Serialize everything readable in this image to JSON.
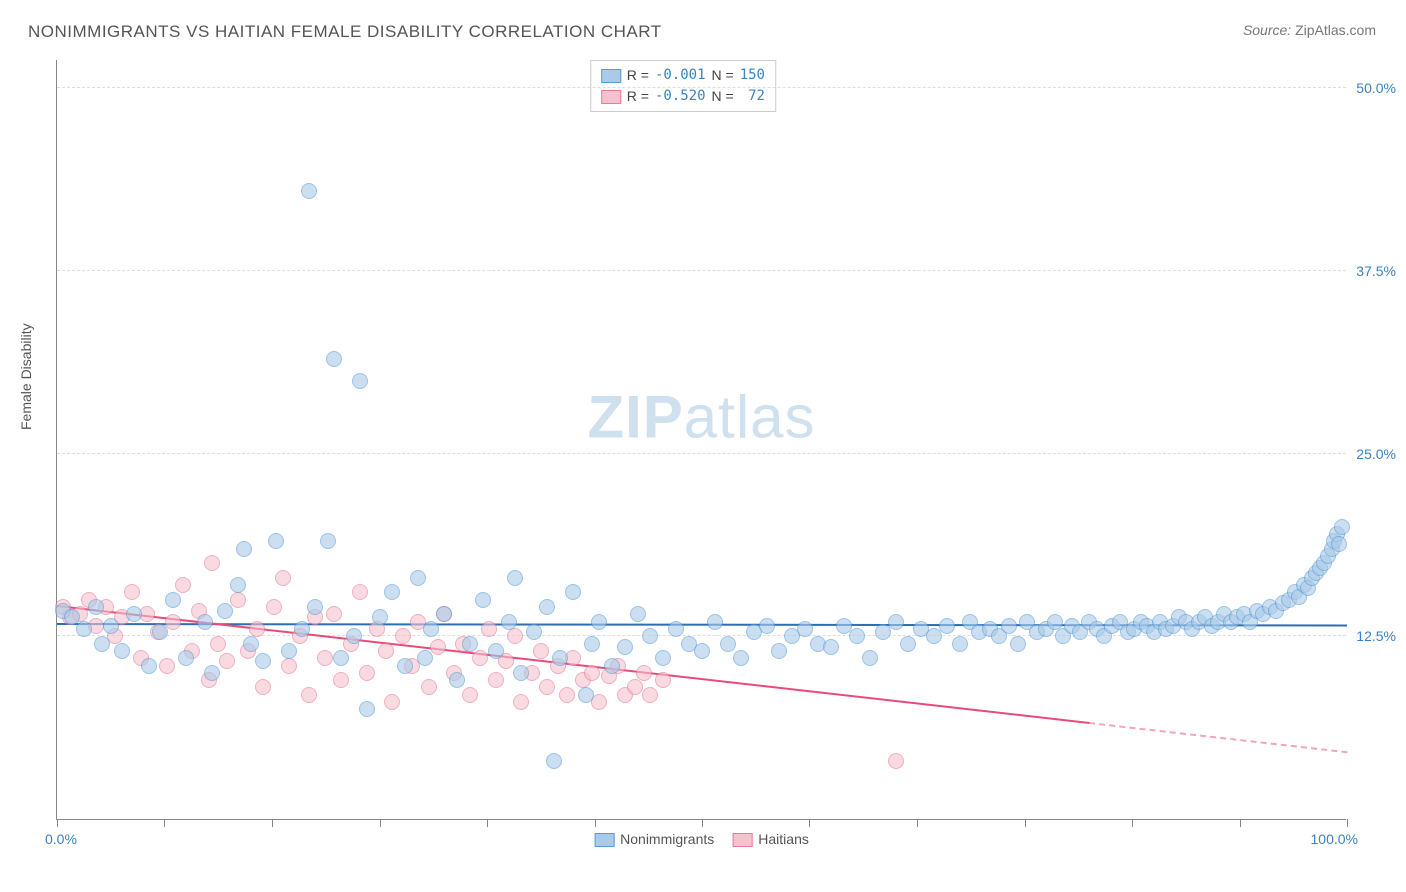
{
  "title": "NONIMMIGRANTS VS HAITIAN FEMALE DISABILITY CORRELATION CHART",
  "source_label": "Source:",
  "source_name": "ZipAtlas.com",
  "yaxis_title": "Female Disability",
  "watermark_bold": "ZIP",
  "watermark_rest": "atlas",
  "chart": {
    "type": "scatter",
    "background_color": "#ffffff",
    "grid_color": "#dddddd",
    "axis_color": "#888888",
    "xlim": [
      0,
      100
    ],
    "ylim": [
      0,
      52
    ],
    "xaxis": {
      "label_left": "0.0%",
      "label_right": "100.0%",
      "tick_positions": [
        0,
        8.3,
        16.7,
        25,
        33.3,
        41.7,
        50,
        58.3,
        66.7,
        75,
        83.3,
        91.7,
        100
      ]
    },
    "yaxis": {
      "ticks": [
        {
          "value": 12.5,
          "label": "12.5%"
        },
        {
          "value": 25.0,
          "label": "25.0%"
        },
        {
          "value": 37.5,
          "label": "37.5%"
        },
        {
          "value": 50.0,
          "label": "50.0%"
        }
      ]
    },
    "marker_radius": 8,
    "marker_border_width": 1,
    "series": [
      {
        "name": "Nonimmigrants",
        "fill_color": "#a9cbe8",
        "border_color": "#5b9bd5",
        "fill_opacity": 0.6,
        "R": "-0.001",
        "N": "150",
        "trend": {
          "y_at_x0": 13.3,
          "y_at_x100": 13.2,
          "color": "#2f6db3",
          "width": 2,
          "dash_from_x": 100
        },
        "points": [
          [
            0.5,
            14.2
          ],
          [
            1.2,
            13.8
          ],
          [
            2.1,
            13.0
          ],
          [
            3.0,
            14.5
          ],
          [
            3.5,
            12.0
          ],
          [
            4.2,
            13.2
          ],
          [
            5.0,
            11.5
          ],
          [
            6.0,
            14.0
          ],
          [
            7.1,
            10.5
          ],
          [
            8.0,
            12.8
          ],
          [
            9.0,
            15.0
          ],
          [
            10.0,
            11.0
          ],
          [
            11.5,
            13.5
          ],
          [
            12.0,
            10.0
          ],
          [
            13.0,
            14.2
          ],
          [
            14.0,
            16.0
          ],
          [
            14.5,
            18.5
          ],
          [
            15.0,
            12.0
          ],
          [
            16.0,
            10.8
          ],
          [
            17.0,
            19.0
          ],
          [
            18.0,
            11.5
          ],
          [
            19.0,
            13.0
          ],
          [
            19.5,
            43.0
          ],
          [
            20.0,
            14.5
          ],
          [
            21.0,
            19.0
          ],
          [
            21.5,
            31.5
          ],
          [
            22.0,
            11.0
          ],
          [
            23.0,
            12.5
          ],
          [
            23.5,
            30.0
          ],
          [
            24.0,
            7.5
          ],
          [
            25.0,
            13.8
          ],
          [
            26.0,
            15.5
          ],
          [
            27.0,
            10.5
          ],
          [
            28.0,
            16.5
          ],
          [
            28.5,
            11.0
          ],
          [
            29.0,
            13.0
          ],
          [
            30.0,
            14.0
          ],
          [
            31.0,
            9.5
          ],
          [
            32.0,
            12.0
          ],
          [
            33.0,
            15.0
          ],
          [
            34.0,
            11.5
          ],
          [
            35.0,
            13.5
          ],
          [
            35.5,
            16.5
          ],
          [
            36.0,
            10.0
          ],
          [
            37.0,
            12.8
          ],
          [
            38.0,
            14.5
          ],
          [
            38.5,
            4.0
          ],
          [
            39.0,
            11.0
          ],
          [
            40.0,
            15.5
          ],
          [
            41.0,
            8.5
          ],
          [
            41.5,
            12.0
          ],
          [
            42.0,
            13.5
          ],
          [
            43.0,
            10.5
          ],
          [
            44.0,
            11.8
          ],
          [
            45.0,
            14.0
          ],
          [
            46.0,
            12.5
          ],
          [
            47.0,
            11.0
          ],
          [
            48.0,
            13.0
          ],
          [
            49.0,
            12.0
          ],
          [
            50.0,
            11.5
          ],
          [
            51.0,
            13.5
          ],
          [
            52.0,
            12.0
          ],
          [
            53.0,
            11.0
          ],
          [
            54.0,
            12.8
          ],
          [
            55.0,
            13.2
          ],
          [
            56.0,
            11.5
          ],
          [
            57.0,
            12.5
          ],
          [
            58.0,
            13.0
          ],
          [
            59.0,
            12.0
          ],
          [
            60.0,
            11.8
          ],
          [
            61.0,
            13.2
          ],
          [
            62.0,
            12.5
          ],
          [
            63.0,
            11.0
          ],
          [
            64.0,
            12.8
          ],
          [
            65.0,
            13.5
          ],
          [
            66.0,
            12.0
          ],
          [
            67.0,
            13.0
          ],
          [
            68.0,
            12.5
          ],
          [
            69.0,
            13.2
          ],
          [
            70.0,
            12.0
          ],
          [
            70.8,
            13.5
          ],
          [
            71.5,
            12.8
          ],
          [
            72.3,
            13.0
          ],
          [
            73.0,
            12.5
          ],
          [
            73.8,
            13.2
          ],
          [
            74.5,
            12.0
          ],
          [
            75.2,
            13.5
          ],
          [
            76.0,
            12.8
          ],
          [
            76.7,
            13.0
          ],
          [
            77.4,
            13.5
          ],
          [
            78.0,
            12.5
          ],
          [
            78.7,
            13.2
          ],
          [
            79.3,
            12.8
          ],
          [
            80.0,
            13.5
          ],
          [
            80.6,
            13.0
          ],
          [
            81.2,
            12.5
          ],
          [
            81.8,
            13.2
          ],
          [
            82.4,
            13.5
          ],
          [
            83.0,
            12.8
          ],
          [
            83.5,
            13.0
          ],
          [
            84.0,
            13.5
          ],
          [
            84.5,
            13.2
          ],
          [
            85.0,
            12.8
          ],
          [
            85.5,
            13.5
          ],
          [
            86.0,
            13.0
          ],
          [
            86.5,
            13.2
          ],
          [
            87.0,
            13.8
          ],
          [
            87.5,
            13.5
          ],
          [
            88.0,
            13.0
          ],
          [
            88.5,
            13.5
          ],
          [
            89.0,
            13.8
          ],
          [
            89.5,
            13.2
          ],
          [
            90.0,
            13.5
          ],
          [
            90.5,
            14.0
          ],
          [
            91.0,
            13.5
          ],
          [
            91.5,
            13.8
          ],
          [
            92.0,
            14.0
          ],
          [
            92.5,
            13.5
          ],
          [
            93.0,
            14.2
          ],
          [
            93.5,
            14.0
          ],
          [
            94.0,
            14.5
          ],
          [
            94.5,
            14.2
          ],
          [
            95.0,
            14.8
          ],
          [
            95.5,
            15.0
          ],
          [
            96.0,
            15.5
          ],
          [
            96.3,
            15.2
          ],
          [
            96.7,
            16.0
          ],
          [
            97.0,
            15.8
          ],
          [
            97.3,
            16.5
          ],
          [
            97.6,
            16.8
          ],
          [
            97.9,
            17.2
          ],
          [
            98.2,
            17.5
          ],
          [
            98.5,
            18.0
          ],
          [
            98.8,
            18.5
          ],
          [
            99.0,
            19.0
          ],
          [
            99.2,
            19.5
          ],
          [
            99.4,
            18.8
          ],
          [
            99.6,
            20.0
          ]
        ]
      },
      {
        "name": "Haitians",
        "fill_color": "#f5c2cd",
        "border_color": "#e87a9a",
        "fill_opacity": 0.6,
        "R": "-0.520",
        "N": " 72",
        "trend": {
          "y_at_x0": 14.5,
          "y_at_x100": 4.5,
          "color": "#e84a7a",
          "width": 2,
          "dash_from_x": 80
        },
        "points": [
          [
            0.5,
            14.5
          ],
          [
            1.0,
            13.8
          ],
          [
            1.8,
            14.0
          ],
          [
            2.5,
            15.0
          ],
          [
            3.0,
            13.2
          ],
          [
            3.8,
            14.5
          ],
          [
            4.5,
            12.5
          ],
          [
            5.0,
            13.8
          ],
          [
            5.8,
            15.5
          ],
          [
            6.5,
            11.0
          ],
          [
            7.0,
            14.0
          ],
          [
            7.8,
            12.8
          ],
          [
            8.5,
            10.5
          ],
          [
            9.0,
            13.5
          ],
          [
            9.8,
            16.0
          ],
          [
            10.5,
            11.5
          ],
          [
            11.0,
            14.2
          ],
          [
            11.8,
            9.5
          ],
          [
            12.0,
            17.5
          ],
          [
            12.5,
            12.0
          ],
          [
            13.2,
            10.8
          ],
          [
            14.0,
            15.0
          ],
          [
            14.8,
            11.5
          ],
          [
            15.5,
            13.0
          ],
          [
            16.0,
            9.0
          ],
          [
            16.8,
            14.5
          ],
          [
            17.5,
            16.5
          ],
          [
            18.0,
            10.5
          ],
          [
            18.8,
            12.5
          ],
          [
            19.5,
            8.5
          ],
          [
            20.0,
            13.8
          ],
          [
            20.8,
            11.0
          ],
          [
            21.5,
            14.0
          ],
          [
            22.0,
            9.5
          ],
          [
            22.8,
            12.0
          ],
          [
            23.5,
            15.5
          ],
          [
            24.0,
            10.0
          ],
          [
            24.8,
            13.0
          ],
          [
            25.5,
            11.5
          ],
          [
            26.0,
            8.0
          ],
          [
            26.8,
            12.5
          ],
          [
            27.5,
            10.5
          ],
          [
            28.0,
            13.5
          ],
          [
            28.8,
            9.0
          ],
          [
            29.5,
            11.8
          ],
          [
            30.0,
            14.0
          ],
          [
            30.8,
            10.0
          ],
          [
            31.5,
            12.0
          ],
          [
            32.0,
            8.5
          ],
          [
            32.8,
            11.0
          ],
          [
            33.5,
            13.0
          ],
          [
            34.0,
            9.5
          ],
          [
            34.8,
            10.8
          ],
          [
            35.5,
            12.5
          ],
          [
            36.0,
            8.0
          ],
          [
            36.8,
            10.0
          ],
          [
            37.5,
            11.5
          ],
          [
            38.0,
            9.0
          ],
          [
            38.8,
            10.5
          ],
          [
            39.5,
            8.5
          ],
          [
            40.0,
            11.0
          ],
          [
            40.8,
            9.5
          ],
          [
            41.5,
            10.0
          ],
          [
            42.0,
            8.0
          ],
          [
            42.8,
            9.8
          ],
          [
            43.5,
            10.5
          ],
          [
            44.0,
            8.5
          ],
          [
            44.8,
            9.0
          ],
          [
            45.5,
            10.0
          ],
          [
            46.0,
            8.5
          ],
          [
            65.0,
            4.0
          ],
          [
            47.0,
            9.5
          ]
        ]
      }
    ]
  },
  "legend_top": {
    "stat1_label": "R =",
    "stat2_label": "N ="
  },
  "legend_bottom": {
    "items": [
      "Nonimmigrants",
      "Haitians"
    ]
  }
}
